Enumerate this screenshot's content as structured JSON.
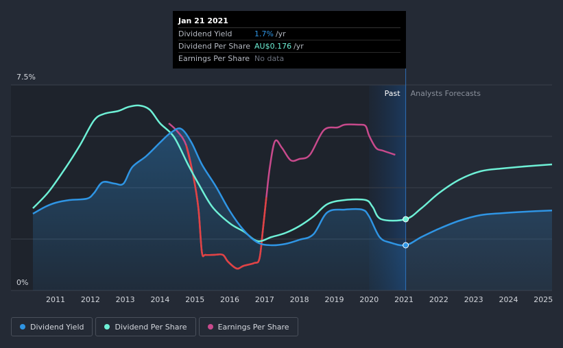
{
  "tooltip": {
    "date": "Jan 21 2021",
    "rows": [
      {
        "label": "Dividend Yield",
        "value": "1.7%",
        "unit": "/yr"
      },
      {
        "label": "Dividend Per Share",
        "value": "AU$0.176",
        "unit": "/yr"
      },
      {
        "label": "Earnings Per Share",
        "value": "No data",
        "unit": ""
      }
    ]
  },
  "legend": [
    {
      "label": "Dividend Yield",
      "color": "#2f95e4"
    },
    {
      "label": "Dividend Per Share",
      "color": "#6ef0d6"
    },
    {
      "label": "Earnings Per Share",
      "color": "#c84a8c"
    }
  ],
  "chart_data": {
    "type": "line",
    "title": "",
    "xlabel": "",
    "ylabel": "",
    "y_top_label": "7.5%",
    "y_bottom_label": "0%",
    "ylim": [
      0,
      7.5
    ],
    "xlim": [
      2010.35,
      2025.25
    ],
    "x_ticks": [
      "2011",
      "2012",
      "2013",
      "2014",
      "2015",
      "2016",
      "2017",
      "2018",
      "2019",
      "2020",
      "2021",
      "2022",
      "2023",
      "2024",
      "2025"
    ],
    "past_label": "Past",
    "forecast_label": "Analysts Forecasts",
    "past_region": [
      2020.0,
      2021.05
    ],
    "marker_x": 2021.05,
    "series": [
      {
        "name": "Dividend Yield",
        "color": "#2f95e4",
        "points": [
          [
            2010.35,
            2.8
          ],
          [
            2010.7,
            3.05
          ],
          [
            2011.0,
            3.2
          ],
          [
            2011.4,
            3.3
          ],
          [
            2011.9,
            3.35
          ],
          [
            2012.1,
            3.55
          ],
          [
            2012.35,
            3.95
          ],
          [
            2012.7,
            3.9
          ],
          [
            2012.95,
            3.9
          ],
          [
            2013.2,
            4.5
          ],
          [
            2013.6,
            4.9
          ],
          [
            2014.0,
            5.4
          ],
          [
            2014.3,
            5.75
          ],
          [
            2014.6,
            5.9
          ],
          [
            2014.9,
            5.4
          ],
          [
            2015.2,
            4.6
          ],
          [
            2015.6,
            3.8
          ],
          [
            2016.0,
            2.9
          ],
          [
            2016.4,
            2.2
          ],
          [
            2016.8,
            1.75
          ],
          [
            2017.2,
            1.65
          ],
          [
            2017.6,
            1.7
          ],
          [
            2018.0,
            1.85
          ],
          [
            2018.4,
            2.05
          ],
          [
            2018.8,
            2.85
          ],
          [
            2019.3,
            2.95
          ],
          [
            2019.8,
            2.95
          ],
          [
            2020.0,
            2.7
          ],
          [
            2020.3,
            1.95
          ],
          [
            2020.6,
            1.75
          ],
          [
            2021.05,
            1.65
          ],
          [
            2021.5,
            1.95
          ],
          [
            2022.0,
            2.25
          ],
          [
            2022.6,
            2.55
          ],
          [
            2023.2,
            2.75
          ],
          [
            2023.8,
            2.82
          ],
          [
            2024.4,
            2.87
          ],
          [
            2025.25,
            2.92
          ]
        ]
      },
      {
        "name": "Dividend Per Share",
        "color": "#6ef0d6",
        "points": [
          [
            2010.35,
            3.0
          ],
          [
            2010.8,
            3.6
          ],
          [
            2011.3,
            4.5
          ],
          [
            2011.7,
            5.3
          ],
          [
            2012.1,
            6.2
          ],
          [
            2012.4,
            6.45
          ],
          [
            2012.8,
            6.55
          ],
          [
            2013.1,
            6.7
          ],
          [
            2013.4,
            6.75
          ],
          [
            2013.7,
            6.6
          ],
          [
            2014.0,
            6.1
          ],
          [
            2014.4,
            5.6
          ],
          [
            2014.8,
            4.6
          ],
          [
            2015.1,
            3.9
          ],
          [
            2015.5,
            3.05
          ],
          [
            2016.0,
            2.45
          ],
          [
            2016.4,
            2.15
          ],
          [
            2016.8,
            1.8
          ],
          [
            2017.2,
            1.95
          ],
          [
            2017.6,
            2.1
          ],
          [
            2018.0,
            2.35
          ],
          [
            2018.4,
            2.7
          ],
          [
            2018.8,
            3.15
          ],
          [
            2019.3,
            3.3
          ],
          [
            2019.9,
            3.3
          ],
          [
            2020.1,
            3.05
          ],
          [
            2020.35,
            2.6
          ],
          [
            2021.05,
            2.6
          ],
          [
            2021.5,
            3.0
          ],
          [
            2022.0,
            3.55
          ],
          [
            2022.6,
            4.05
          ],
          [
            2023.2,
            4.35
          ],
          [
            2023.8,
            4.45
          ],
          [
            2024.4,
            4.52
          ],
          [
            2025.25,
            4.6
          ]
        ]
      },
      {
        "name": "Earnings Per Share",
        "color": "#c84a8c",
        "negative_color": "#e04343",
        "points": [
          [
            2014.25,
            6.1
          ],
          [
            2014.5,
            5.8
          ],
          [
            2014.75,
            5.3
          ],
          [
            2014.95,
            4.2
          ],
          [
            2015.1,
            3.0
          ],
          [
            2015.2,
            1.4
          ],
          [
            2015.3,
            1.3
          ],
          [
            2015.55,
            1.3
          ],
          [
            2015.8,
            1.3
          ],
          [
            2015.95,
            1.05
          ],
          [
            2016.2,
            0.8
          ],
          [
            2016.4,
            0.9
          ],
          [
            2016.7,
            1.0
          ],
          [
            2016.85,
            1.15
          ],
          [
            2016.95,
            2.2
          ],
          [
            2017.05,
            3.4
          ],
          [
            2017.15,
            4.5
          ],
          [
            2017.3,
            5.45
          ],
          [
            2017.5,
            5.2
          ],
          [
            2017.75,
            4.75
          ],
          [
            2018.0,
            4.8
          ],
          [
            2018.3,
            4.95
          ],
          [
            2018.7,
            5.85
          ],
          [
            2019.1,
            5.95
          ],
          [
            2019.3,
            6.05
          ],
          [
            2019.7,
            6.05
          ],
          [
            2019.9,
            6.0
          ],
          [
            2020.0,
            5.65
          ],
          [
            2020.2,
            5.2
          ],
          [
            2020.4,
            5.1
          ],
          [
            2020.75,
            4.95
          ]
        ]
      }
    ]
  }
}
